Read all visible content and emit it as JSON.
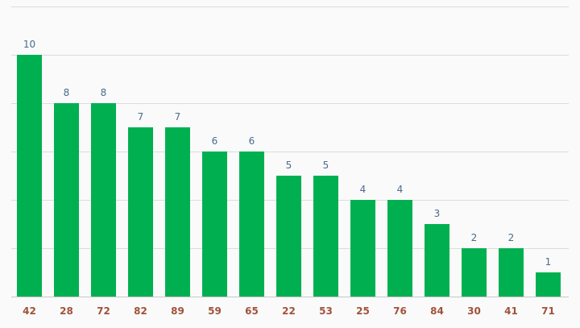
{
  "chart_data": {
    "type": "bar",
    "categories": [
      "42",
      "28",
      "72",
      "82",
      "89",
      "59",
      "65",
      "22",
      "53",
      "25",
      "76",
      "84",
      "30",
      "41",
      "71"
    ],
    "values": [
      10,
      8,
      8,
      7,
      7,
      6,
      6,
      5,
      5,
      4,
      4,
      3,
      2,
      2,
      1
    ],
    "title": "",
    "xlabel": "",
    "ylabel": "",
    "ylim": [
      0,
      12
    ],
    "grid": true,
    "data_labels": true
  },
  "colors": {
    "bar": "#00b050",
    "value_label": "#4a6b8a",
    "tick_label": "#a0523a",
    "background": "#fafafa"
  }
}
